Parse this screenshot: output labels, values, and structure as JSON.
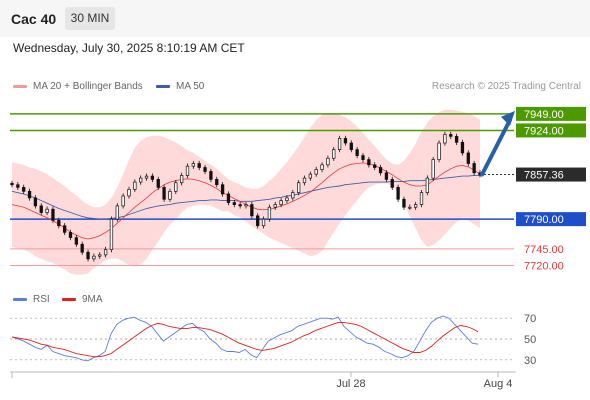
{
  "header": {
    "symbol": "Cac 40",
    "timeframe": "30 MIN",
    "datetime": "Wednesday, July 30, 2025 8:10:19 AM CET",
    "credit": "Research © 2025 Trading Central"
  },
  "colors": {
    "resistance": "#4d9a00",
    "support": "#1f4ecb",
    "lower_levels": "#e83a3a",
    "bollinger_fill": "#ffd6d6",
    "ma20": "#e83a3a",
    "ma50": "#3d5ea8",
    "candle": "#111111",
    "forecast_arrow": "#2a5fa8",
    "rsi": "#5b7fd6",
    "rsi_ma": "#e02020"
  },
  "legend": {
    "ma20": "MA 20 + Bollinger Bands",
    "ma50": "MA 50",
    "rsi": "RSI",
    "rsi_ma": "9MA"
  },
  "chart_data": [
    {
      "type": "candlestick",
      "ylim": [
        7695,
        7970
      ],
      "x_ticks": [
        "Jul 28",
        "Aug 4"
      ],
      "price_levels": [
        {
          "label": "7949.00",
          "value": 7949,
          "kind": "resistance"
        },
        {
          "label": "7924.00",
          "value": 7924,
          "kind": "resistance"
        },
        {
          "label": "7857.36",
          "value": 7857.36,
          "kind": "current"
        },
        {
          "label": "7790.00",
          "value": 7790,
          "kind": "support"
        },
        {
          "label": "7745.00",
          "value": 7745,
          "kind": "level"
        },
        {
          "label": "7720.00",
          "value": 7720,
          "kind": "level"
        }
      ],
      "close": [
        7842,
        7838,
        7832,
        7822,
        7810,
        7800,
        7805,
        7788,
        7780,
        7770,
        7762,
        7752,
        7740,
        7730,
        7734,
        7736,
        7744,
        7790,
        7810,
        7825,
        7835,
        7846,
        7852,
        7855,
        7850,
        7838,
        7820,
        7832,
        7845,
        7856,
        7870,
        7874,
        7868,
        7862,
        7850,
        7842,
        7828,
        7815,
        7812,
        7810,
        7812,
        7795,
        7780,
        7790,
        7808,
        7812,
        7818,
        7822,
        7830,
        7845,
        7852,
        7858,
        7865,
        7872,
        7882,
        7895,
        7912,
        7905,
        7895,
        7886,
        7880,
        7872,
        7868,
        7860,
        7850,
        7838,
        7820,
        7808,
        7808,
        7812,
        7830,
        7852,
        7880,
        7905,
        7918,
        7915,
        7906,
        7890,
        7874,
        7860,
        7857
      ],
      "ma20": [
        7812,
        7810,
        7808,
        7804,
        7800,
        7796,
        7792,
        7788,
        7782,
        7777,
        7770,
        7766,
        7762,
        7760,
        7762,
        7765,
        7770,
        7776,
        7784,
        7792,
        7800,
        7808,
        7815,
        7822,
        7830,
        7836,
        7842,
        7846,
        7848,
        7850,
        7851,
        7850,
        7848,
        7845,
        7841,
        7836,
        7830,
        7826,
        7821,
        7817,
        7812,
        7808,
        7805,
        7804,
        7805,
        7807,
        7810,
        7813,
        7817,
        7821,
        7826,
        7831,
        7838,
        7845,
        7853,
        7860,
        7866,
        7870,
        7873,
        7874,
        7875,
        7874,
        7871,
        7867,
        7862,
        7857,
        7851,
        7846,
        7842,
        7840,
        7840,
        7842,
        7848,
        7855,
        7861,
        7866,
        7870,
        7871,
        7869,
        7864,
        7858
      ],
      "ma50": [
        7832,
        7830,
        7828,
        7825,
        7822,
        7818,
        7814,
        7810,
        7806,
        7803,
        7800,
        7797,
        7794,
        7792,
        7791,
        7790,
        7790,
        7791,
        7792,
        7794,
        7797,
        7800,
        7803,
        7806,
        7808,
        7810,
        7811,
        7812,
        7814,
        7815,
        7816,
        7817,
        7818,
        7818,
        7819,
        7819,
        7818,
        7818,
        7818,
        7817,
        7817,
        7817,
        7818,
        7819,
        7820,
        7822,
        7823,
        7825,
        7826,
        7828,
        7830,
        7832,
        7834,
        7836,
        7838,
        7839,
        7840,
        7842,
        7843,
        7844,
        7845,
        7846,
        7846,
        7846,
        7846,
        7847,
        7847,
        7847,
        7848,
        7848,
        7848,
        7849,
        7850,
        7851,
        7852,
        7853,
        7854,
        7855,
        7855,
        7856,
        7856
      ],
      "bb_upper": [
        7876,
        7874,
        7872,
        7868,
        7866,
        7862,
        7858,
        7852,
        7846,
        7840,
        7832,
        7826,
        7818,
        7812,
        7808,
        7808,
        7812,
        7822,
        7838,
        7858,
        7880,
        7898,
        7908,
        7914,
        7916,
        7916,
        7914,
        7910,
        7906,
        7900,
        7894,
        7890,
        7884,
        7878,
        7872,
        7866,
        7858,
        7850,
        7846,
        7842,
        7838,
        7836,
        7836,
        7840,
        7848,
        7856,
        7866,
        7876,
        7888,
        7900,
        7914,
        7928,
        7940,
        7948,
        7950,
        7950,
        7948,
        7944,
        7938,
        7930,
        7920,
        7910,
        7900,
        7890,
        7880,
        7874,
        7872,
        7878,
        7890,
        7904,
        7922,
        7936,
        7945,
        7952,
        7955,
        7955,
        7954,
        7952,
        7950,
        7946,
        7940
      ],
      "bb_lower": [
        7748,
        7746,
        7744,
        7740,
        7734,
        7730,
        7726,
        7724,
        7718,
        7714,
        7708,
        7706,
        7706,
        7708,
        7716,
        7722,
        7728,
        7730,
        7730,
        7726,
        7720,
        7718,
        7722,
        7730,
        7744,
        7756,
        7770,
        7782,
        7790,
        7800,
        7808,
        7810,
        7812,
        7812,
        7810,
        7806,
        7802,
        7802,
        7796,
        7792,
        7786,
        7780,
        7774,
        7768,
        7762,
        7758,
        7754,
        7750,
        7746,
        7742,
        7738,
        7734,
        7736,
        7742,
        7756,
        7770,
        7784,
        7796,
        7808,
        7818,
        7830,
        7838,
        7842,
        7844,
        7844,
        7840,
        7830,
        7814,
        7794,
        7776,
        7758,
        7748,
        7751,
        7758,
        7767,
        7777,
        7786,
        7790,
        7788,
        7782,
        7776
      ],
      "forecast": {
        "from": 7857.36,
        "to": 7949
      }
    },
    {
      "type": "line",
      "title": "RSI",
      "ylim": [
        25,
        75
      ],
      "y_ticks": [
        70,
        50,
        30
      ],
      "series": [
        {
          "name": "RSI",
          "values": [
            52,
            50,
            48,
            45,
            42,
            40,
            44,
            38,
            36,
            34,
            33,
            32,
            30,
            29,
            32,
            34,
            38,
            55,
            64,
            68,
            70,
            71,
            68,
            66,
            62,
            55,
            48,
            52,
            56,
            60,
            64,
            65,
            60,
            57,
            50,
            46,
            40,
            38,
            38,
            37,
            40,
            35,
            32,
            40,
            48,
            51,
            54,
            56,
            58,
            62,
            64,
            66,
            68,
            70,
            70,
            69,
            71,
            62,
            57,
            52,
            49,
            46,
            45,
            42,
            38,
            36,
            33,
            32,
            34,
            38,
            48,
            58,
            66,
            70,
            72,
            70,
            64,
            58,
            52,
            46,
            45
          ]
        },
        {
          "name": "9MA",
          "values": [
            52,
            51,
            50,
            49,
            47,
            45,
            44,
            42,
            41,
            40,
            38,
            36,
            35,
            34,
            33,
            33,
            34,
            36,
            40,
            44,
            48,
            52,
            56,
            60,
            63,
            65,
            64,
            62,
            61,
            60,
            60,
            61,
            61,
            60,
            59,
            57,
            55,
            52,
            49,
            46,
            44,
            42,
            40,
            39,
            40,
            41,
            43,
            45,
            47,
            50,
            53,
            55,
            58,
            60,
            62,
            64,
            66,
            66,
            65,
            64,
            62,
            59,
            56,
            53,
            50,
            47,
            44,
            41,
            39,
            37,
            37,
            39,
            43,
            48,
            53,
            57,
            61,
            63,
            62,
            60,
            57
          ]
        }
      ]
    }
  ]
}
